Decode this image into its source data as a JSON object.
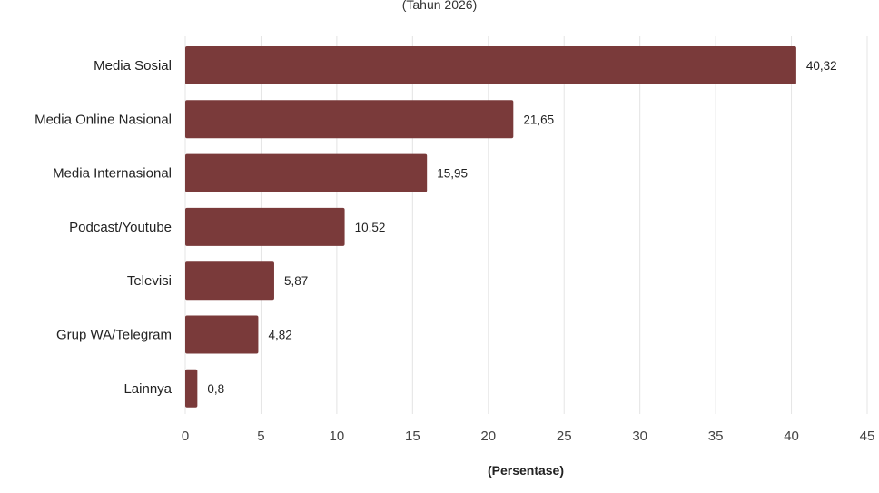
{
  "chart_data": {
    "type": "bar",
    "orientation": "horizontal",
    "subtitle": "(Tahun 2026)",
    "xlabel": "(Persentase)",
    "ylabel": "",
    "categories": [
      "Media Sosial",
      "Media Online Nasional",
      "Media Internasional",
      "Podcast/Youtube",
      "Televisi",
      "Grup WA/Telegram",
      "Lainnya"
    ],
    "values": [
      40.32,
      21.65,
      15.95,
      10.52,
      5.87,
      4.82,
      0.8
    ],
    "value_labels": [
      "40,32",
      "21,65",
      "15,95",
      "10,52",
      "5,87",
      "4,82",
      "0,8"
    ],
    "xlim": [
      0,
      45
    ],
    "xticks": [
      0,
      5,
      10,
      15,
      20,
      25,
      30,
      35,
      40,
      45
    ],
    "grid": "vertical",
    "legend": "none",
    "colors": {
      "bar": "#7a3a3a",
      "grid": "#e4e4e4",
      "text": "#222222"
    }
  }
}
